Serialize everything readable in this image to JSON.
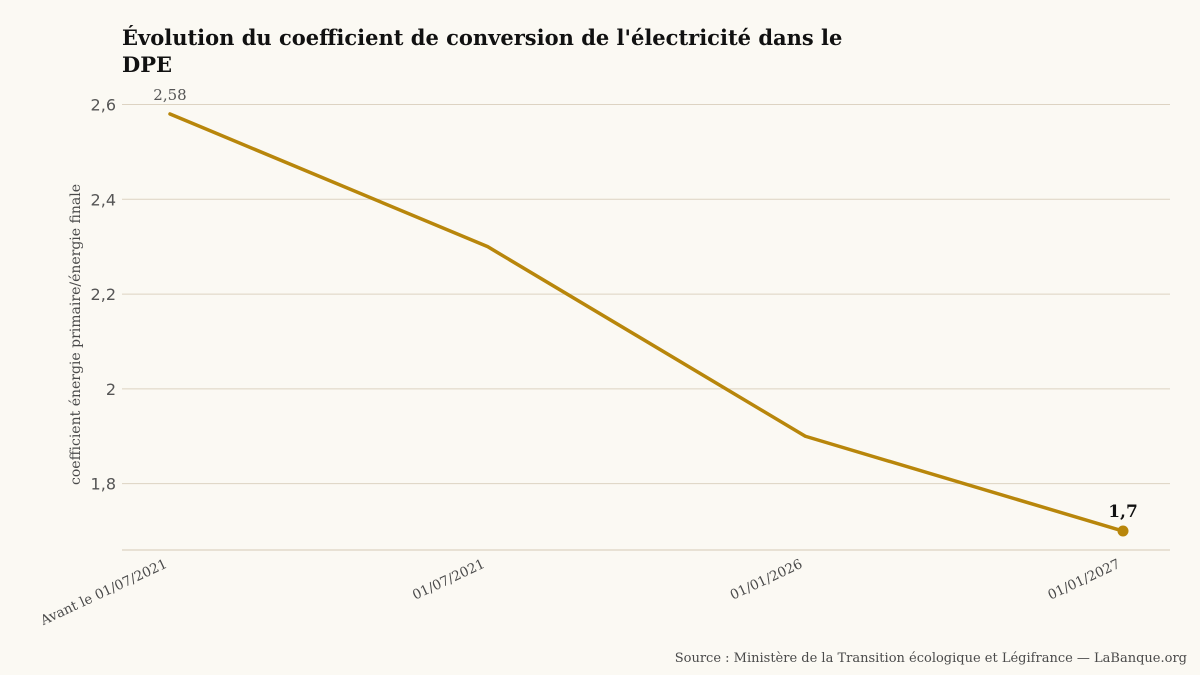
{
  "title": "Évolution du coefficient de conversion de l'électricité dans le DPE",
  "source": "Source : Ministère de la Transition écologique et Légifrance — LaBanque.org",
  "colors": {
    "line": "#b8860b",
    "grid": "#ddd3c2",
    "background": "#fbf9f3"
  },
  "chart_data": {
    "type": "line",
    "title": "Évolution du coefficient de conversion de l'électricité dans le DPE",
    "categories": [
      "Avant le 01/07/2021",
      "01/07/2021",
      "01/01/2026",
      "01/01/2027"
    ],
    "values": [
      2.58,
      2.3,
      1.9,
      1.7
    ],
    "ylabel": "coefficient énergie primaire/énergie finale",
    "xlabel": "",
    "ylim": [
      1.66,
      2.62
    ],
    "yticks": [
      1.8,
      2,
      2.2,
      2.4,
      2.6
    ],
    "ytick_labels": [
      "1,8",
      "2",
      "2,2",
      "2,4",
      "2,6"
    ],
    "data_labels": [
      {
        "index": 0,
        "text": "2,58"
      },
      {
        "index": 3,
        "text": "1,7"
      }
    ],
    "grid": true,
    "legend": "none"
  }
}
